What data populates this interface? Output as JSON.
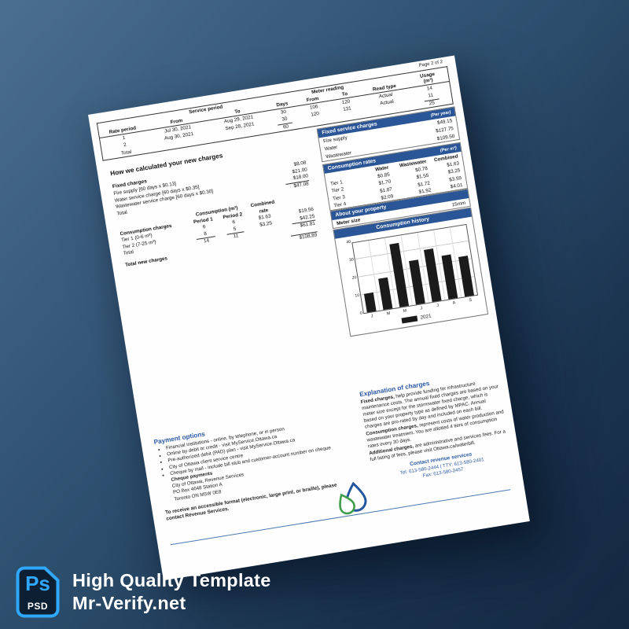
{
  "badge": {
    "ps": "Ps",
    "psd": "PSD",
    "title": "High Quality Template",
    "site": "Mr-Verify.net",
    "accent_color": "#31a8ff"
  },
  "bill": {
    "page_number": "Page 2 of 2",
    "bar_color": "#2a5596",
    "usage_table": {
      "rate_period": "Rate period",
      "service_period": "Service period",
      "from": "From",
      "to": "To",
      "days": "Days",
      "meter_reading": "Meter reading",
      "read_type": "Read type",
      "usage": "Usage",
      "usage_unit": "(m³)",
      "rows": [
        {
          "n": "1",
          "from": "Jul 30, 2021",
          "to": "Aug 29, 2021",
          "days": "30",
          "m_from": "106",
          "m_to": "120",
          "read": "Actual",
          "usage": "14"
        },
        {
          "n": "2",
          "from": "Aug 30, 2021",
          "to": "Sep 28, 2021",
          "days": "30",
          "m_from": "120",
          "m_to": "131",
          "read": "Actual",
          "usage": "11"
        }
      ],
      "total_label": "Total",
      "total_days": "60",
      "total_usage": "25"
    },
    "calc": {
      "title": "How we calculated your new charges",
      "fixed_label": "Fixed charges",
      "fixed_rows": [
        {
          "label": "Fire supply [60 days x $0.13]",
          "amount": "$8.08"
        },
        {
          "label": "Water service charge [60 days x $0.35]",
          "amount": "$21.00"
        },
        {
          "label": "Wastewater service charge [60 days x $0.30]",
          "amount": "$18.00"
        }
      ],
      "fixed_total_label": "Total",
      "fixed_total_amount": "$47.08",
      "cons_label": "Consumption charges",
      "cons_group_header": "Consumption (m³)",
      "period1": "Period 1",
      "period2": "Period 2",
      "combined_line1": "Combined",
      "combined_line2": "rate",
      "cons_rows": [
        {
          "label": "Tier 1 (0-6 m³)",
          "p1": "6",
          "p2": "6",
          "rate": "$1.63",
          "amount": "$19.56"
        },
        {
          "label": "Tier 2 (7-25 m³)",
          "p1": "8",
          "p2": "5",
          "rate": "$3.25",
          "amount": "$42.25"
        }
      ],
      "cons_total_label": "Total",
      "cons_total_p1": "14",
      "cons_total_p2": "11",
      "cons_total_amount": "$61.81",
      "grand_total_label": "Total new charges",
      "grand_total_amount": "$108.89"
    },
    "fixed_service": {
      "title": "Fixed service charges",
      "unit": "(Per year)",
      "rows": [
        {
          "label": "Fire supply",
          "value": "$49.15"
        },
        {
          "label": "Water",
          "value": "$127.75"
        },
        {
          "label": "Wastewater",
          "value": "$109.50"
        }
      ]
    },
    "rates": {
      "title": "Consumption rates",
      "unit": "(Per m³)",
      "col1": "Water",
      "col2": "Wastewater",
      "col3": "Combined",
      "rows": [
        {
          "label": "Tier 1",
          "water": "$0.85",
          "wastewater": "$0.78",
          "combined": "$1.63"
        },
        {
          "label": "Tier 2",
          "water": "$1.70",
          "wastewater": "$1.55",
          "combined": "$3.25"
        },
        {
          "label": "Tier 3",
          "water": "$1.87",
          "wastewater": "$1.72",
          "combined": "$3.59"
        },
        {
          "label": "Tier 4",
          "water": "$2.09",
          "wastewater": "$1.92",
          "combined": "$4.01"
        }
      ]
    },
    "property": {
      "title": "About your property",
      "meter_label": "Meter size",
      "meter_value": "15mm"
    },
    "history_title": "Consumption history",
    "payment": {
      "title": "Payment options",
      "bullets": [
        "Financial institutions - online, by telephone, or in person",
        "Online by debit or credit - visit MyService.Ottawa.ca",
        "Pre-authorized debit (PAD) plan - visit MyService.Ottawa.ca",
        "City of Ottawa client service centre",
        "Cheque by mail - include bill stub and customer-account number on cheque"
      ],
      "cheque_title": "Cheque payments",
      "address": [
        "City of Ottawa, Revenue Services",
        "PO Box 4648 Station A",
        "Toronto ON M5W 0E8"
      ],
      "accessible": "To receive an accessible format (electronic, large print, or braille), please contact Revenue Services."
    },
    "explanation": {
      "title": "Explanation of charges",
      "p1_lead": "Fixed charges,",
      "p1": " help provide funding for infrastructure maintenance costs. The annual fixed charges are based on your meter size except for the stormwater fixed charge, which is based on your property type as defined by MPAC. Annual charges are pro-rated by day and included on each bill.",
      "p2_lead": "Consumption charges,",
      "p2": " represent costs of water production and wastewater treatment. You are allotted 4 tiers of consumption rates every 30 days.",
      "p3_lead": "Additional charges,",
      "p3": " are administrative and services fees. For a full listing of fees, please visit Ottawa.ca/waterbill."
    },
    "contact": {
      "title": "Contact revenue services",
      "tel": "Tel: 613-580-2444 | TTY: 613-580-2401",
      "fax": "Fax: 613-580-2457"
    }
  },
  "chart_data": {
    "type": "bar",
    "title": "Consumption history",
    "categories": [
      "J",
      "M",
      "M",
      "J",
      "J",
      "A",
      "S"
    ],
    "series": [
      {
        "name": "2021",
        "values": [
          11,
          18,
          36,
          25,
          30,
          25,
          23
        ]
      }
    ],
    "ylim": [
      0,
      40
    ],
    "yticks": [
      0,
      10,
      20,
      30,
      40
    ],
    "grid": true,
    "legend_position": "bottom",
    "bar_color": "#1b1b1b"
  }
}
